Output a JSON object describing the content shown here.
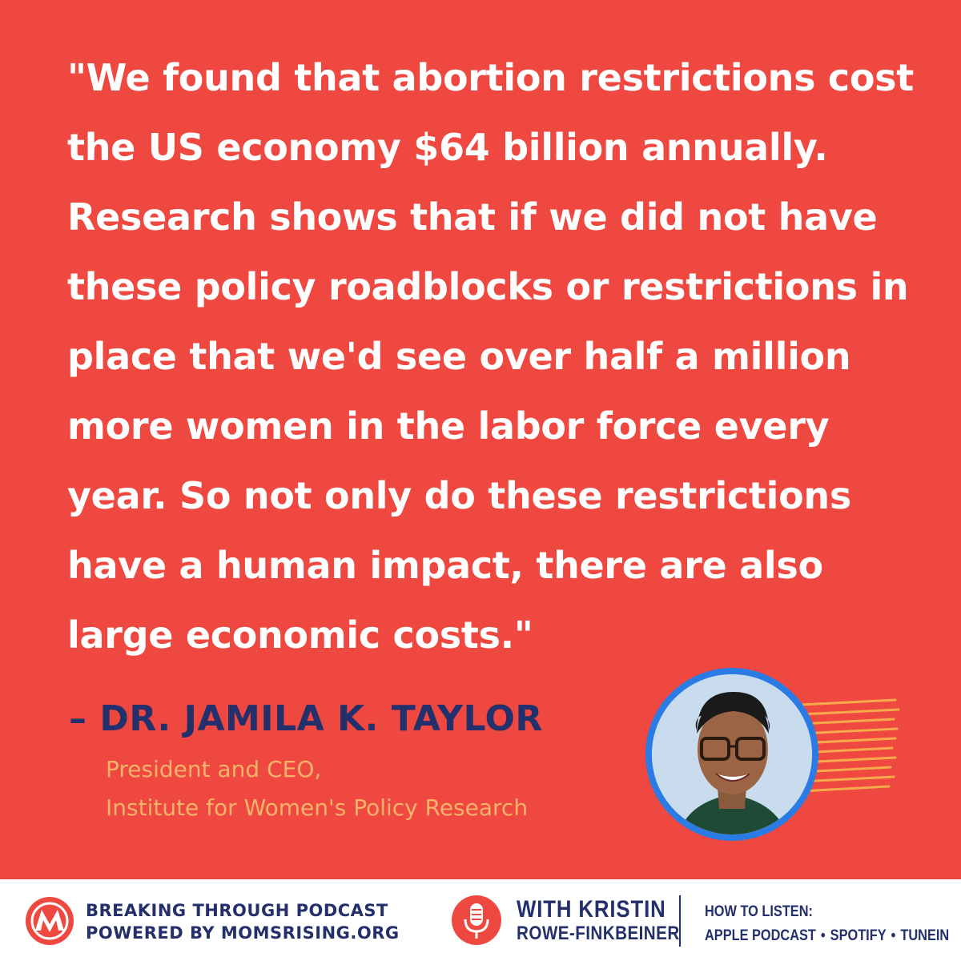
{
  "quote": {
    "lines": [
      "\"We found that abortion restrictions cost",
      "the US economy $64 billion annually.",
      "Research shows that if we did not have",
      "these policy roadblocks or restrictions in",
      "place that we'd see over half a million",
      "more women in the labor force every",
      "year. So not only do these restrictions",
      "have a human impact, there are also",
      "large economic costs.\""
    ]
  },
  "speaker": {
    "name": "– DR. JAMILA K. TAYLOR",
    "title_line1": "President and CEO,",
    "title_line2": "Institute for Women's Policy Research"
  },
  "footer": {
    "podcast_line1": "BREAKING THROUGH PODCAST",
    "podcast_line2": "POWERED BY MOMSRISING.ORG",
    "host_line1": "WITH KRISTIN",
    "host_line2": "ROWE-FINKBEINER",
    "listen_heading": "HOW TO LISTEN:",
    "listen_options": [
      "APPLE PODCAST",
      "SPOTIFY",
      "TUNEIN"
    ],
    "separator": "•"
  },
  "colors": {
    "background": "#ef4840",
    "quote_text": "#ffffff",
    "name_text": "#23306b",
    "title_text": "#f6b36a",
    "photo_ring": "#2a7be4",
    "footer_text": "#23306b"
  },
  "icons": [
    "momsrising-logo-icon",
    "podcast-microphone-icon",
    "speaker-photo"
  ]
}
